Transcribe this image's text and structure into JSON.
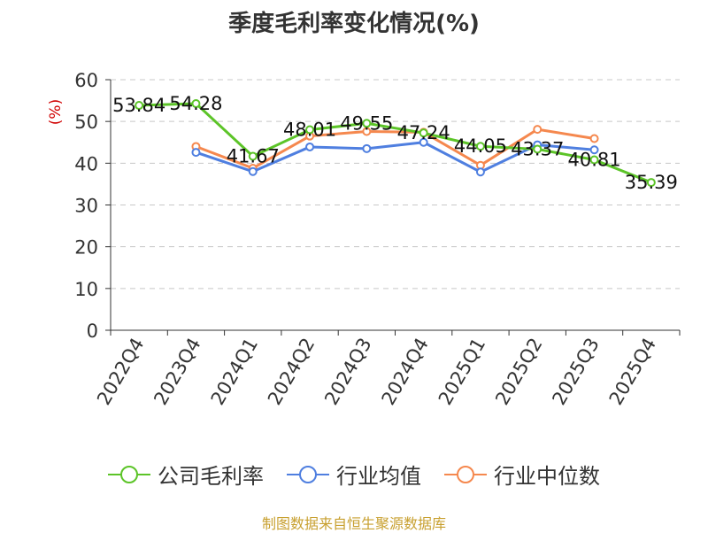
{
  "chart_data": {
    "type": "line",
    "title": "季度毛利率变化情况(%)",
    "ylabel": "(%)",
    "xlabel": "",
    "ylim": [
      0,
      60
    ],
    "yticks": [
      0,
      10,
      20,
      30,
      40,
      50,
      60
    ],
    "grid": true,
    "legend_position": "bottom",
    "categories": [
      "2022Q4",
      "2023Q4",
      "2024Q1",
      "2024Q2",
      "2024Q3",
      "2024Q4",
      "2025Q1",
      "2025Q2",
      "2025Q3",
      "2025Q4"
    ],
    "series": [
      {
        "name": "公司毛利率",
        "color": "#5cc428",
        "labeled": true,
        "values": [
          53.84,
          54.28,
          41.67,
          48.01,
          49.55,
          47.24,
          44.05,
          43.37,
          40.81,
          35.39
        ]
      },
      {
        "name": "行业均值",
        "color": "#4f7fe0",
        "labeled": false,
        "values": [
          null,
          42.6,
          38.0,
          43.9,
          43.5,
          45.0,
          37.9,
          44.4,
          43.2,
          null
        ]
      },
      {
        "name": "行业中位数",
        "color": "#f5884e",
        "labeled": false,
        "values": [
          null,
          44.0,
          38.8,
          46.5,
          47.6,
          47.4,
          39.5,
          48.1,
          45.9,
          null
        ]
      }
    ]
  },
  "source_note": "制图数据来自恒生聚源数据库"
}
